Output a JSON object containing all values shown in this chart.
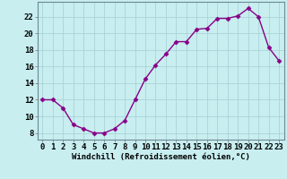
{
  "x": [
    0,
    1,
    2,
    3,
    4,
    5,
    6,
    7,
    8,
    9,
    10,
    11,
    12,
    13,
    14,
    15,
    16,
    17,
    18,
    19,
    20,
    21,
    22,
    23
  ],
  "y": [
    12,
    12,
    11,
    9,
    8.5,
    8,
    8,
    8.5,
    9.5,
    12,
    14.5,
    16.2,
    17.5,
    19,
    19,
    20.5,
    20.6,
    21.8,
    21.8,
    22.1,
    23,
    22,
    18.3,
    16.7
  ],
  "line_color": "#880088",
  "marker": "D",
  "marker_size": 2.5,
  "bg_color": "#c8eef0",
  "grid_color": "#a8d4d8",
  "xlabel": "Windchill (Refroidissement éolien,°C)",
  "ylabel_ticks": [
    8,
    10,
    12,
    14,
    16,
    18,
    20,
    22
  ],
  "xlim": [
    -0.5,
    23.5
  ],
  "ylim": [
    7.2,
    23.8
  ],
  "xlabel_fontsize": 6.5,
  "tick_fontsize": 6.5,
  "linewidth": 1.0
}
